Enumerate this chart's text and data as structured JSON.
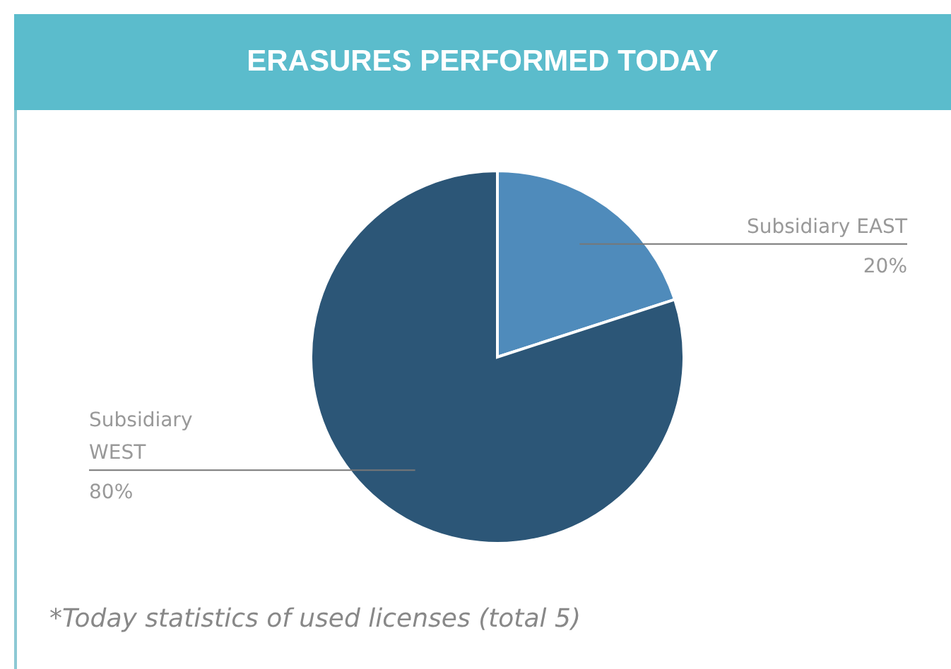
{
  "chart_data": {
    "type": "pie",
    "title": "ERASURES PERFORMED TODAY",
    "categories": [
      "Subsidiary EAST",
      "Subsidiary WEST"
    ],
    "values": [
      20,
      80
    ],
    "colors": [
      "#4f8bbb",
      "#2c5677"
    ],
    "value_labels": [
      "20%",
      "80%"
    ],
    "annotations": [
      "*Today statistics of used licenses (total 5)"
    ]
  }
}
